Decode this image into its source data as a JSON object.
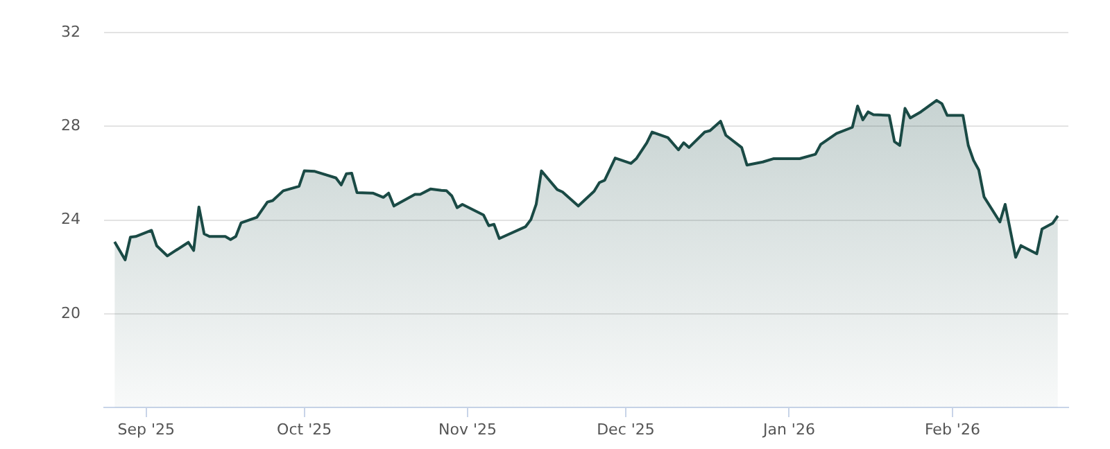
{
  "chart_data": {
    "type": "area",
    "x": [
      "2025-08-26",
      "2025-08-28",
      "2025-08-29",
      "2025-08-30",
      "2025-09-02",
      "2025-09-03",
      "2025-09-05",
      "2025-09-09",
      "2025-09-10",
      "2025-09-11",
      "2025-09-12",
      "2025-09-13",
      "2025-09-16",
      "2025-09-17",
      "2025-09-18",
      "2025-09-19",
      "2025-09-22",
      "2025-09-24",
      "2025-09-25",
      "2025-09-27",
      "2025-09-30",
      "2025-10-01",
      "2025-10-03",
      "2025-10-07",
      "2025-10-08",
      "2025-10-09",
      "2025-10-10",
      "2025-10-11",
      "2025-10-14",
      "2025-10-16",
      "2025-10-17",
      "2025-10-18",
      "2025-10-22",
      "2025-10-23",
      "2025-10-25",
      "2025-10-27",
      "2025-10-28",
      "2025-10-29",
      "2025-10-30",
      "2025-10-31",
      "2025-11-04",
      "2025-11-05",
      "2025-11-06",
      "2025-11-07",
      "2025-11-12",
      "2025-11-13",
      "2025-11-14",
      "2025-11-15",
      "2025-11-18",
      "2025-11-19",
      "2025-11-22",
      "2025-11-25",
      "2025-11-26",
      "2025-11-27",
      "2025-11-29",
      "2025-12-02",
      "2025-12-03",
      "2025-12-05",
      "2025-12-06",
      "2025-12-09",
      "2025-12-11",
      "2025-12-12",
      "2025-12-13",
      "2025-12-16",
      "2025-12-17",
      "2025-12-19",
      "2025-12-20",
      "2025-12-23",
      "2025-12-24",
      "2025-12-27",
      "2025-12-29",
      "2026-01-03",
      "2026-01-06",
      "2026-01-07",
      "2026-01-08",
      "2026-01-10",
      "2026-01-13",
      "2026-01-14",
      "2026-01-15",
      "2026-01-16",
      "2026-01-17",
      "2026-01-20",
      "2026-01-21",
      "2026-01-22",
      "2026-01-23",
      "2026-01-24",
      "2026-01-26",
      "2026-01-29",
      "2026-01-30",
      "2026-01-31",
      "2026-02-03",
      "2026-02-04",
      "2026-02-05",
      "2026-02-06",
      "2026-02-07",
      "2026-02-10",
      "2026-02-11",
      "2026-02-13",
      "2026-02-14",
      "2026-02-17",
      "2026-02-18",
      "2026-02-20",
      "2026-02-21"
    ],
    "series": [
      {
        "color": "#1a4a45",
        "values": [
          23.07,
          22.3,
          23.27,
          23.3,
          23.56,
          22.9,
          22.47,
          23.05,
          22.7,
          24.56,
          23.41,
          23.3,
          23.3,
          23.17,
          23.3,
          23.88,
          24.12,
          24.77,
          24.83,
          25.25,
          25.44,
          26.1,
          26.08,
          25.8,
          25.5,
          25.98,
          26.0,
          25.17,
          25.15,
          24.97,
          25.15,
          24.6,
          25.1,
          25.1,
          25.33,
          25.27,
          25.25,
          25.03,
          24.53,
          24.67,
          24.22,
          23.76,
          23.82,
          23.21,
          23.72,
          24.02,
          24.67,
          26.1,
          25.3,
          25.2,
          24.6,
          25.23,
          25.6,
          25.7,
          26.65,
          26.42,
          26.62,
          27.3,
          27.76,
          27.52,
          27.0,
          27.3,
          27.1,
          27.76,
          27.82,
          28.22,
          27.62,
          27.1,
          26.35,
          26.48,
          26.62,
          26.62,
          26.81,
          27.23,
          27.39,
          27.7,
          27.96,
          28.87,
          28.28,
          28.62,
          28.5,
          28.47,
          27.35,
          27.19,
          28.77,
          28.36,
          28.62,
          29.11,
          28.97,
          28.47,
          28.47,
          27.19,
          26.55,
          26.14,
          24.99,
          23.92,
          24.67,
          22.41,
          22.91,
          22.56,
          23.62,
          23.86,
          24.18
        ]
      }
    ],
    "xlim": [
      "2025-08-24",
      "2026-02-23"
    ],
    "xticks": [
      {
        "value": "2025-09-01",
        "label": "Sep '25"
      },
      {
        "value": "2025-10-01",
        "label": "Oct '25"
      },
      {
        "value": "2025-11-01",
        "label": "Nov '25"
      },
      {
        "value": "2025-12-01",
        "label": "Dec '25"
      },
      {
        "value": "2026-01-01",
        "label": "Jan '26"
      },
      {
        "value": "2026-02-01",
        "label": "Feb '26"
      }
    ],
    "ylim": [
      16,
      32
    ],
    "yticks": [
      20,
      24,
      28,
      32
    ],
    "grid": "y",
    "legend": false,
    "marker": "none",
    "line_style": "solid"
  }
}
